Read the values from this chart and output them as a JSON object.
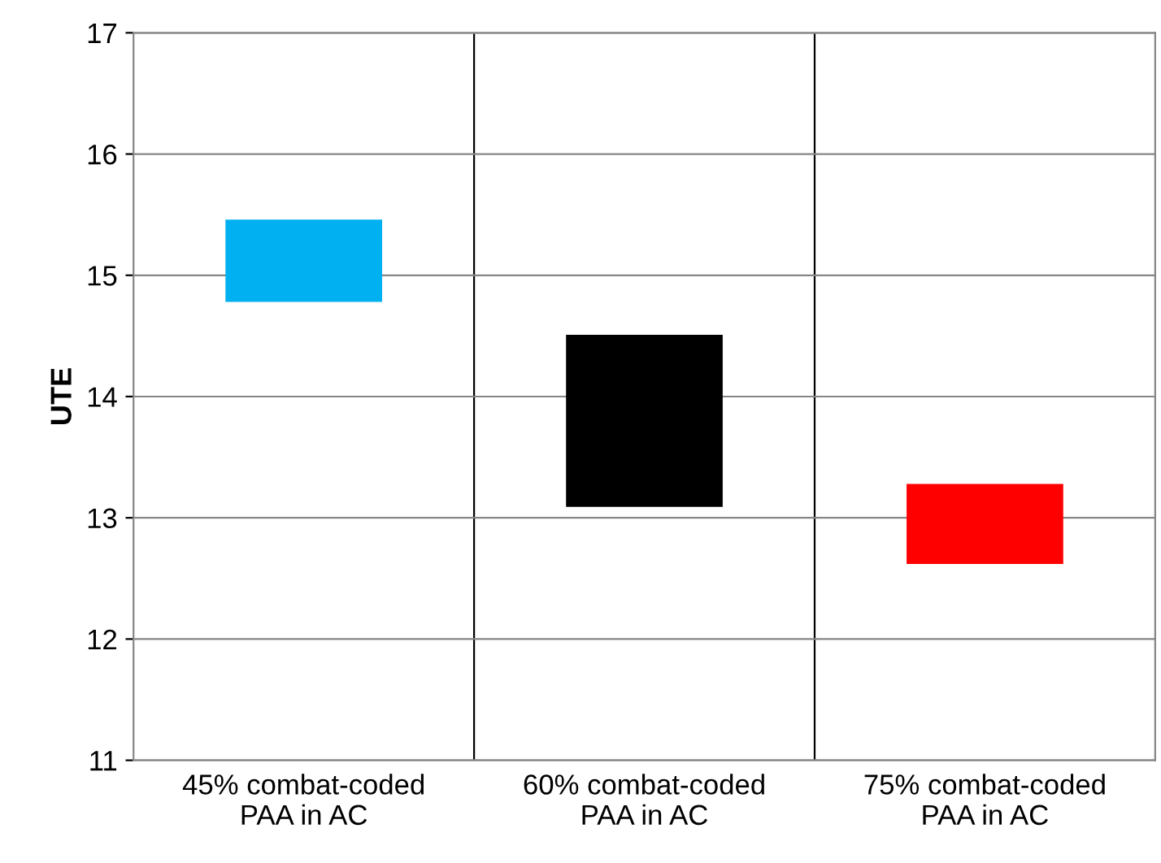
{
  "chart_data": {
    "type": "bar",
    "ylabel": "UTE",
    "categories": [
      "45% combat-coded\nPAA in AC",
      "60% combat-coded\nPAA in AC",
      "75% combat-coded\nPAA in AC"
    ],
    "base": [
      14.78,
      13.09,
      12.62
    ],
    "values": [
      0.68,
      1.42,
      0.66
    ],
    "colors": [
      "#00b0f0",
      "#000000",
      "#ff0000"
    ],
    "ylim": [
      11,
      17
    ],
    "yticks": [
      11,
      12,
      13,
      14,
      15,
      16,
      17
    ],
    "grid": true
  }
}
